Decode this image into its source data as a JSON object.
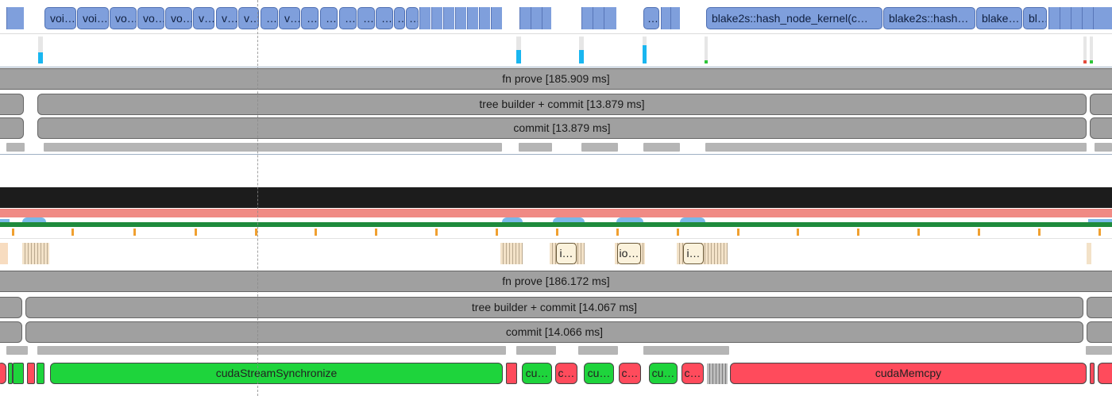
{
  "kernels": {
    "items": [
      "voi…",
      "voi…",
      "vo…",
      "vo…",
      "vo…",
      "v…",
      "v…",
      "v…",
      "…",
      "v…",
      "…",
      "…",
      "…",
      "…",
      "…",
      "…",
      "…",
      "…",
      "…"
    ],
    "main": [
      "blake2s::hash_node_kernel(c…",
      "blake2s::hash…",
      "blake…",
      "bl…"
    ],
    "short": "…"
  },
  "thread1": {
    "prove": "fn prove [185.909 ms]",
    "tree": "tree builder + commit [13.879 ms]",
    "commit": "commit [13.879 ms]"
  },
  "io_events": [
    "i…",
    "io…",
    "i…"
  ],
  "thread2": {
    "prove": "fn prove [186.172 ms]",
    "tree": "tree builder + commit [14.067 ms]",
    "commit": "commit [14.066 ms]"
  },
  "cuda": {
    "sync": "cudaStreamSynchronize",
    "memcpy": "cudaMemcpy",
    "short_green": "cu…",
    "short_red": "c…"
  },
  "colors": {
    "kernel": "#7f9fdc",
    "slice": "#a0a0a0",
    "cuda_sync": "#1ed43c",
    "cuda_memcpy": "#ff4b5c",
    "counter_dark": "#1c1c1c",
    "counter_pink": "#f08a84",
    "counter_green": "#1e8a3c"
  }
}
